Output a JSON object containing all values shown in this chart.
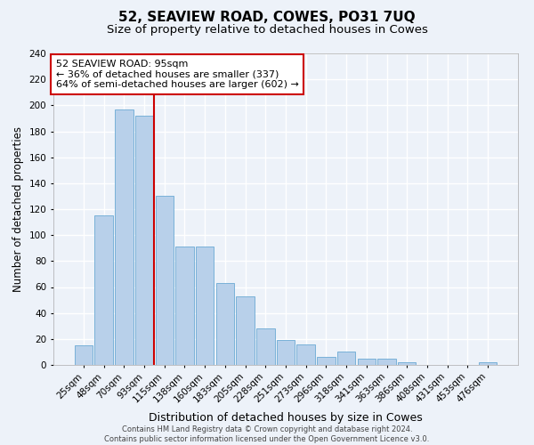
{
  "title": "52, SEAVIEW ROAD, COWES, PO31 7UQ",
  "subtitle": "Size of property relative to detached houses in Cowes",
  "xlabel": "Distribution of detached houses by size in Cowes",
  "ylabel": "Number of detached properties",
  "categories": [
    "25sqm",
    "48sqm",
    "70sqm",
    "93sqm",
    "115sqm",
    "138sqm",
    "160sqm",
    "183sqm",
    "205sqm",
    "228sqm",
    "251sqm",
    "273sqm",
    "296sqm",
    "318sqm",
    "341sqm",
    "363sqm",
    "386sqm",
    "408sqm",
    "431sqm",
    "453sqm",
    "476sqm"
  ],
  "values": [
    15,
    115,
    197,
    192,
    130,
    91,
    91,
    63,
    53,
    28,
    19,
    16,
    6,
    10,
    5,
    5,
    2,
    0,
    0,
    0,
    2
  ],
  "bar_color": "#b8d0ea",
  "bar_edge_color": "#6aaad4",
  "vline_x": 3.5,
  "vline_color": "#cc0000",
  "annotation_line1": "52 SEAVIEW ROAD: 95sqm",
  "annotation_line2": "← 36% of detached houses are smaller (337)",
  "annotation_line3": "64% of semi-detached houses are larger (602) →",
  "annotation_box_facecolor": "#ffffff",
  "annotation_box_edgecolor": "#cc0000",
  "ylim": [
    0,
    240
  ],
  "yticks": [
    0,
    20,
    40,
    60,
    80,
    100,
    120,
    140,
    160,
    180,
    200,
    220,
    240
  ],
  "footer_line1": "Contains HM Land Registry data © Crown copyright and database right 2024.",
  "footer_line2": "Contains public sector information licensed under the Open Government Licence v3.0.",
  "bg_color": "#edf2f9",
  "grid_color": "#ffffff",
  "title_fontsize": 11,
  "subtitle_fontsize": 9.5,
  "tick_fontsize": 7.5,
  "ylabel_fontsize": 8.5,
  "xlabel_fontsize": 9,
  "annotation_fontsize": 8,
  "footer_fontsize": 6
}
